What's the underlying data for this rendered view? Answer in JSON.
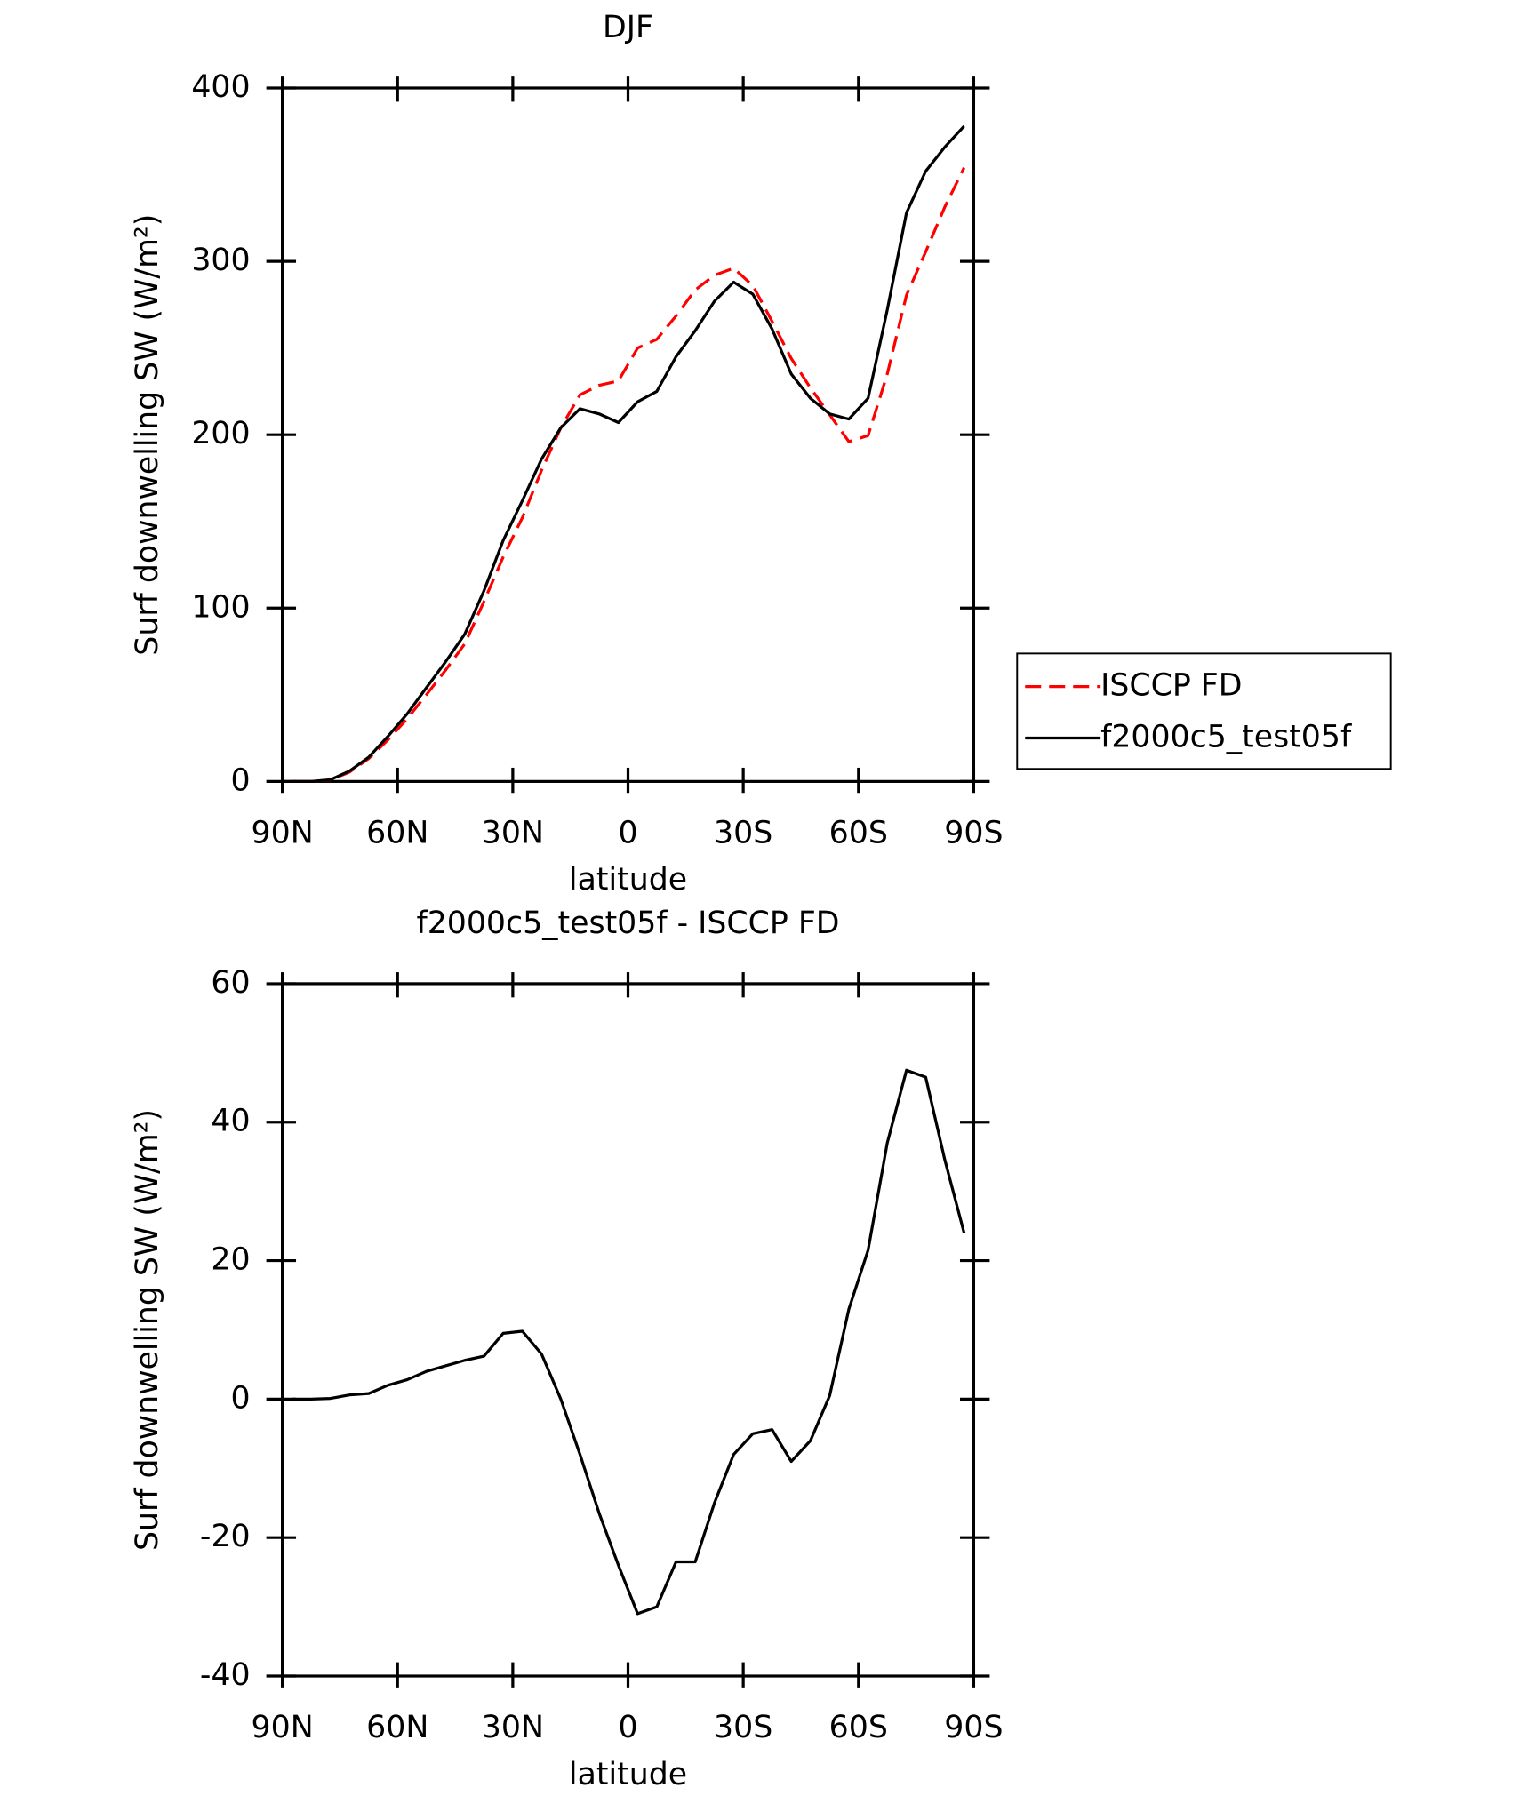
{
  "chart_data": [
    {
      "type": "line",
      "title": "DJF",
      "xlabel": "latitude",
      "ylabel": "Surf downwelling SW (W/m²)",
      "x": [
        87.5,
        82.5,
        77.5,
        72.5,
        67.5,
        62.5,
        57.5,
        52.5,
        47.5,
        42.5,
        37.5,
        32.5,
        27.5,
        22.5,
        17.5,
        12.5,
        7.5,
        2.5,
        -2.5,
        -7.5,
        -12.5,
        -17.5,
        -22.5,
        -27.5,
        -32.5,
        -37.5,
        -42.5,
        -47.5,
        -52.5,
        -57.5,
        -62.5,
        -67.5,
        -72.5,
        -77.5,
        -82.5,
        -87.5
      ],
      "series": [
        {
          "name": "ISCCP FD",
          "color": "#ff0000",
          "line_style": "dashed",
          "values": [
            0,
            0,
            0.9,
            5.4,
            13.2,
            24,
            36.2,
            50,
            64.2,
            79.4,
            103.8,
            129.5,
            152.2,
            179.5,
            204,
            223,
            228.5,
            231,
            250,
            255,
            268.5,
            283.5,
            292,
            296,
            286,
            265.4,
            244,
            227,
            211.5,
            196,
            199.5,
            235,
            280.5,
            305.5,
            331.5,
            354
          ]
        },
        {
          "name": "f2000c5_test05f",
          "color": "#000000",
          "line_style": "solid",
          "values": [
            0,
            0,
            1,
            6,
            14,
            26,
            39,
            54,
            69,
            85,
            110,
            139,
            162,
            186,
            204,
            215,
            212,
            207,
            219,
            225,
            245,
            260,
            277,
            288,
            281,
            261,
            235,
            221,
            212,
            209,
            221,
            272,
            328,
            352,
            366,
            378
          ]
        }
      ],
      "xlim": [
        90,
        -90
      ],
      "xticks": [
        {
          "value": 90,
          "label": "90N"
        },
        {
          "value": 60,
          "label": "60N"
        },
        {
          "value": 30,
          "label": "30N"
        },
        0,
        {
          "value": -30,
          "label": "30S"
        },
        {
          "value": -60,
          "label": "60S"
        },
        {
          "value": -90,
          "label": "90S"
        }
      ],
      "ylim": [
        0,
        400
      ],
      "yticks": [
        0,
        100,
        200,
        300,
        400
      ],
      "legend": "right"
    },
    {
      "type": "line",
      "title": "f2000c5_test05f - ISCCP FD",
      "xlabel": "latitude",
      "ylabel": "Surf downwelling SW (W/m²)",
      "x": [
        87.5,
        82.5,
        77.5,
        72.5,
        67.5,
        62.5,
        57.5,
        52.5,
        47.5,
        42.5,
        37.5,
        32.5,
        27.5,
        22.5,
        17.5,
        12.5,
        7.5,
        2.5,
        -2.5,
        -7.5,
        -12.5,
        -17.5,
        -22.5,
        -27.5,
        -32.5,
        -37.5,
        -42.5,
        -47.5,
        -52.5,
        -57.5,
        -62.5,
        -67.5,
        -72.5,
        -77.5,
        -82.5,
        -87.5
      ],
      "values": [
        0,
        0,
        0.1,
        0.6,
        0.8,
        2,
        2.8,
        4,
        4.8,
        5.6,
        6.2,
        9.5,
        9.8,
        6.5,
        0,
        -8,
        -16.5,
        -24,
        -31,
        -30,
        -23.5,
        -23.5,
        -15,
        -8,
        -5,
        -4.4,
        -9,
        -6,
        0.5,
        13,
        21.5,
        37,
        47.5,
        46.5,
        34.5,
        24
      ],
      "color": "#000000",
      "xlim": [
        90,
        -90
      ],
      "xticks": [
        {
          "value": 90,
          "label": "90N"
        },
        {
          "value": 60,
          "label": "60N"
        },
        {
          "value": 30,
          "label": "30N"
        },
        0,
        {
          "value": -30,
          "label": "30S"
        },
        {
          "value": -60,
          "label": "60S"
        },
        {
          "value": -90,
          "label": "90S"
        }
      ],
      "ylim": [
        -40,
        60
      ],
      "yticks": [
        -40,
        -20,
        0,
        20,
        40,
        60
      ]
    }
  ]
}
